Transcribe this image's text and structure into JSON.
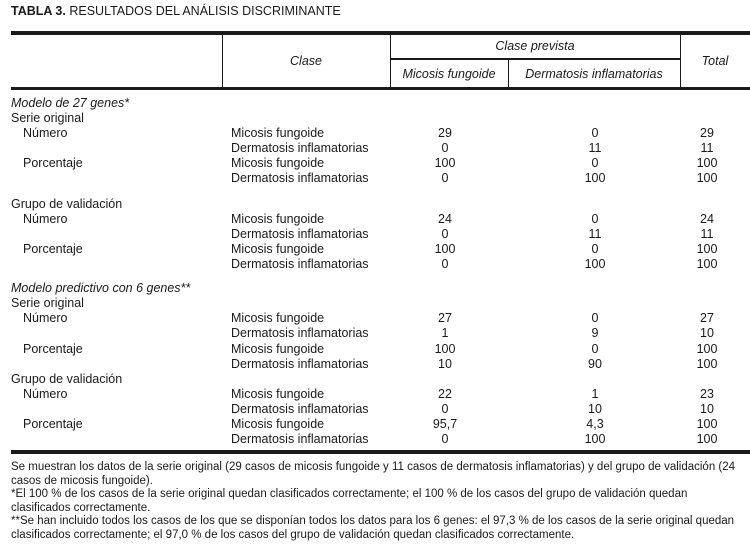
{
  "title": {
    "label": "TABLA 3.",
    "text": "RESULTADOS DEL ANÁLISIS DISCRIMINANTE"
  },
  "header": {
    "clase": "Clase",
    "clase_prevista": "Clase prevista",
    "micosis": "Micosis fungoide",
    "dermatosis": "Dermatosis inflamatorias",
    "total": "Total"
  },
  "rows": [
    {
      "label": "Modelo de 27 genes*",
      "type": "model"
    },
    {
      "label": "Serie original",
      "type": "group"
    },
    {
      "label": "Número",
      "type": "data",
      "clase": "Micosis fungoide",
      "n1": "29",
      "n2": "0",
      "total": "29"
    },
    {
      "label": "",
      "type": "data",
      "clase": "Dermatosis inflamatorias",
      "n1": "0",
      "n2": "11",
      "total": "11"
    },
    {
      "label": "Porcentaje",
      "type": "data",
      "clase": "Micosis fungoide",
      "n1": "100",
      "n2": "0",
      "total": "100"
    },
    {
      "label": "",
      "type": "data",
      "clase": "Dermatosis inflamatorias",
      "n1": "0",
      "n2": "100",
      "total": "100"
    },
    {
      "label": "Grupo de validación",
      "type": "group"
    },
    {
      "label": "Número",
      "type": "data",
      "clase": "Micosis fungoide",
      "n1": "24",
      "n2": "0",
      "total": "24"
    },
    {
      "label": "",
      "type": "data",
      "clase": "Dermatosis inflamatorias",
      "n1": "0",
      "n2": "11",
      "total": "11"
    },
    {
      "label": "Porcentaje",
      "type": "data",
      "clase": "Micosis fungoide",
      "n1": "100",
      "n2": "0",
      "total": "100"
    },
    {
      "label": "",
      "type": "data",
      "clase": "Dermatosis inflamatorias",
      "n1": "0",
      "n2": "100",
      "total": "100"
    },
    {
      "label": "Modelo predictivo con 6 genes**",
      "type": "model"
    },
    {
      "label": "Serie original",
      "type": "group"
    },
    {
      "label": "Número",
      "type": "data",
      "clase": "Micosis fungoide",
      "n1": "27",
      "n2": "0",
      "total": "27"
    },
    {
      "label": "",
      "type": "data",
      "clase": "Dermatosis inflamatorias",
      "n1": "1",
      "n2": "9",
      "total": "10"
    },
    {
      "label": "Porcentaje",
      "type": "data",
      "clase": "Micosis fungoide",
      "n1": "100",
      "n2": "0",
      "total": "100"
    },
    {
      "label": "",
      "type": "data",
      "clase": "Dermatosis inflamatorias",
      "n1": "10",
      "n2": "90",
      "total": "100"
    },
    {
      "label": "Grupo de validación",
      "type": "group"
    },
    {
      "label": "Número",
      "type": "data",
      "clase": "Micosis fungoide",
      "n1": "22",
      "n2": "1",
      "total": "23"
    },
    {
      "label": "",
      "type": "data",
      "clase": "Dermatosis inflamatorias",
      "n1": "0",
      "n2": "10",
      "total": "10"
    },
    {
      "label": "Porcentaje",
      "type": "data",
      "clase": "Micosis fungoide",
      "n1": "95,7",
      "n2": "4,3",
      "total": "100"
    },
    {
      "label": "",
      "type": "data",
      "clase": "Dermatosis inflamatorias",
      "n1": "0",
      "n2": "100",
      "total": "100"
    }
  ],
  "footnotes": [
    "Se muestran los datos de la serie original (29 casos de micosis fungoide y 11 casos de dermatosis inflamatorias) y del grupo de validación (24 casos de micosis fungoide).",
    "*El 100 % de los casos de la serie original quedan clasificados correctamente; el 100 % de los casos del grupo de validación quedan clasificados correctamente.",
    "**Se han incluido todos los casos de los que se disponían todos los datos para los 6 genes: el 97,3 % de los casos de la serie original quedan clasificados correctamente; el 97,0 % de los casos del grupo de validación quedan clasificados correctamente."
  ]
}
